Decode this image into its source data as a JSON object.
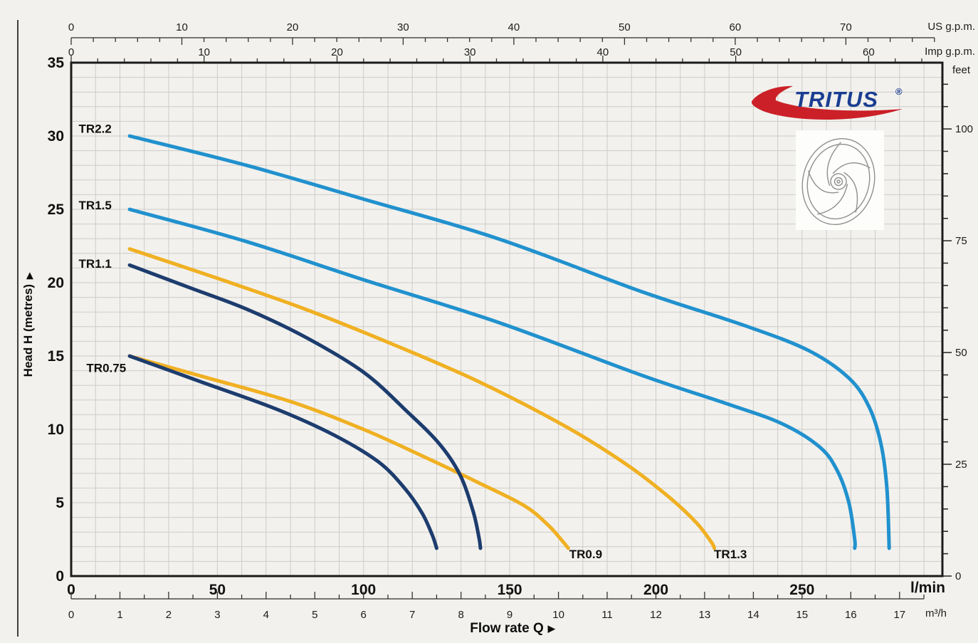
{
  "logo": {
    "text": "TRITUS",
    "registered": "®",
    "text_color": "#1b3e92",
    "swoosh_color": "#cb2027"
  },
  "labels": {
    "us_gpm": "US g.p.m.",
    "imp_gpm": "Imp g.p.m.",
    "feet": "feet",
    "lmin": "l/min",
    "m3h": "m³/h",
    "flow": "Flow rate  Q",
    "flow_arrow": "▶",
    "head": "Head H  (metres)",
    "head_arrow": "▶"
  },
  "chart_data": {
    "type": "line",
    "title": "TRITUS pump performance curves",
    "xlabel": "Flow rate Q",
    "ylabel": "Head H (metres)",
    "x_primary_unit": "l/min",
    "x_range_lmin": [
      0,
      298
    ],
    "y_primary_unit": "metres",
    "y_range_m": [
      0,
      35
    ],
    "grid": {
      "x_step_lmin": 8.3333,
      "y_step_m": 1,
      "color": "#cdccc8"
    },
    "axes": {
      "us_gpm": {
        "label": "US g.p.m.",
        "lmin_per_unit": 3.78541,
        "major_ticks": [
          0,
          10,
          20,
          30,
          40,
          50,
          60,
          70
        ],
        "minor_step": 2,
        "minor_max": 78
      },
      "imp_gpm": {
        "label": "Imp g.p.m.",
        "lmin_per_unit": 4.54609,
        "major_ticks": [
          0,
          10,
          20,
          30,
          40,
          50,
          60
        ],
        "minor_step": 2,
        "minor_max": 64
      },
      "lmin": {
        "label": "l/min",
        "major_ticks": [
          0,
          50,
          100,
          150,
          200,
          250
        ]
      },
      "m3h": {
        "label": "m³/h",
        "lmin_per_unit": 16.66667,
        "major_ticks": [
          0,
          1,
          2,
          3,
          4,
          5,
          6,
          7,
          8,
          9,
          10,
          11,
          12,
          13,
          14,
          15,
          16,
          17
        ],
        "minor_step": 0.5,
        "minor_max": 17.5
      },
      "metres": {
        "label": "Head H (metres)",
        "major_ticks": [
          0,
          5,
          10,
          15,
          20,
          25,
          30,
          35
        ],
        "grid_step": 1
      },
      "feet": {
        "label": "feet",
        "m_per_unit": 0.3048,
        "major_ticks": [
          0,
          25,
          50,
          75,
          100
        ],
        "minor_step": 5,
        "minor_max": 110
      }
    },
    "series": [
      {
        "name": "TR1.3",
        "color": "#f0b022",
        "label_anchor_lmin_m": [
          225.5,
          1.5
        ],
        "points_lmin_m": [
          [
            20,
            22.3
          ],
          [
            50,
            20.3
          ],
          [
            80,
            18.2
          ],
          [
            110,
            15.8
          ],
          [
            140,
            13.2
          ],
          [
            170,
            10.1
          ],
          [
            190,
            7.6
          ],
          [
            205,
            5.3
          ],
          [
            214,
            3.6
          ],
          [
            219,
            2.3
          ],
          [
            220,
            1.9
          ]
        ]
      },
      {
        "name": "TR0.9",
        "color": "#f0b022",
        "label_anchor_lmin_m": [
          176,
          1.5
        ],
        "points_lmin_m": [
          [
            20,
            15
          ],
          [
            45,
            13.6
          ],
          [
            75,
            11.9
          ],
          [
            100,
            10
          ],
          [
            120,
            8.2
          ],
          [
            140,
            6.3
          ],
          [
            155,
            4.8
          ],
          [
            163,
            3.5
          ],
          [
            168,
            2.4
          ],
          [
            170,
            1.9
          ]
        ]
      },
      {
        "name": "TR1.1",
        "color": "#1d3c6e",
        "label_anchor_lmin_m": [
          8.2,
          21.3
        ],
        "points_lmin_m": [
          [
            20,
            21.2
          ],
          [
            40,
            19.7
          ],
          [
            60,
            18.2
          ],
          [
            80,
            16.3
          ],
          [
            100,
            13.9
          ],
          [
            115,
            11.2
          ],
          [
            126,
            9
          ],
          [
            133,
            6.9
          ],
          [
            137.5,
            4.4
          ],
          [
            139.5,
            2.6
          ],
          [
            140,
            1.9
          ]
        ]
      },
      {
        "name": "TR0.75",
        "color": "#1d3c6e",
        "label_anchor_lmin_m": [
          12,
          14.2
        ],
        "points_lmin_m": [
          [
            20,
            15
          ],
          [
            45,
            13.2
          ],
          [
            70,
            11.4
          ],
          [
            90,
            9.6
          ],
          [
            105,
            7.8
          ],
          [
            114,
            6
          ],
          [
            120,
            4.3
          ],
          [
            123.5,
            2.8
          ],
          [
            125,
            1.9
          ]
        ]
      },
      {
        "name": "TR2.2",
        "color": "#2191ce",
        "label_anchor_lmin_m": [
          8.2,
          30.5
        ],
        "points_lmin_m": [
          [
            20,
            30
          ],
          [
            60,
            28
          ],
          [
            100,
            25.7
          ],
          [
            146,
            23
          ],
          [
            195,
            19.4
          ],
          [
            230,
            17.1
          ],
          [
            252,
            15.4
          ],
          [
            266,
            13.5
          ],
          [
            273,
            11.5
          ],
          [
            277,
            9
          ],
          [
            279,
            6
          ],
          [
            279.8,
            1.9
          ]
        ]
      },
      {
        "name": "TR1.5",
        "color": "#2191ce",
        "label_anchor_lmin_m": [
          8.2,
          25.3
        ],
        "points_lmin_m": [
          [
            20,
            25
          ],
          [
            60,
            22.8
          ],
          [
            100,
            20.2
          ],
          [
            146,
            17.3
          ],
          [
            195,
            13.7
          ],
          [
            225,
            11.7
          ],
          [
            243,
            10.4
          ],
          [
            256,
            8.8
          ],
          [
            262,
            7.2
          ],
          [
            266,
            5
          ],
          [
            268,
            2.5
          ],
          [
            268,
            1.9
          ]
        ]
      }
    ]
  }
}
